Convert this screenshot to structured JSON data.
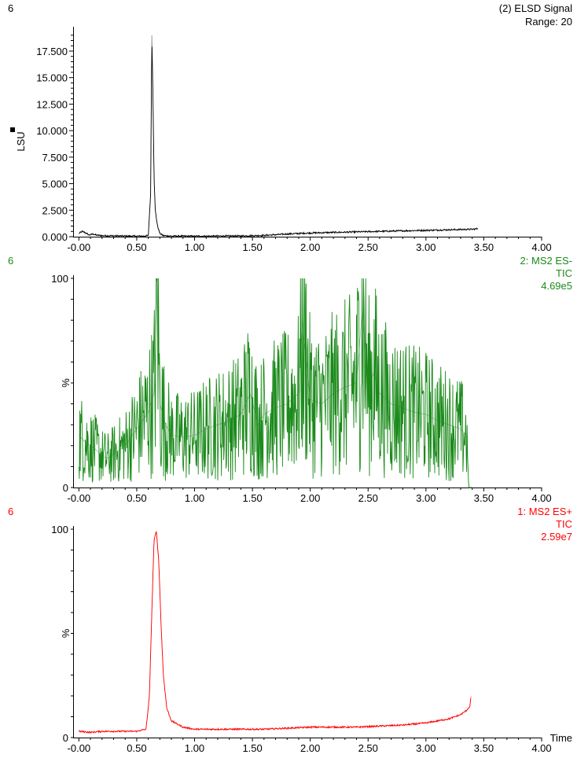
{
  "chart_data": [
    {
      "type": "line",
      "panel_id": "6",
      "title": "(2) ELSD Signal",
      "subtitle": "Range: 20",
      "ylabel": "LSU",
      "xlabel": "",
      "color": "#000000",
      "xlim": [
        -0.05,
        4.0
      ],
      "ylim": [
        0,
        19500
      ],
      "x_ticks": [
        "-0.00",
        "0.50",
        "1.00",
        "1.50",
        "2.00",
        "2.50",
        "3.00",
        "3.50",
        "4.00"
      ],
      "y_ticks": [
        "0.000",
        "2.500",
        "5.000",
        "7.500",
        "10.000",
        "12.500",
        "15.000",
        "17.500"
      ],
      "series": [
        {
          "x": [
            0.0,
            0.03,
            0.06,
            0.09,
            0.12,
            0.15,
            0.2,
            0.3,
            0.4,
            0.5,
            0.56,
            0.6,
            0.62,
            0.63,
            0.64,
            0.65,
            0.66,
            0.68,
            0.7,
            0.73,
            0.8,
            1.0,
            1.2,
            1.4,
            1.6,
            1.8,
            2.0,
            2.2,
            2.4,
            2.6,
            2.8,
            3.0,
            3.2,
            3.4,
            3.45
          ],
          "y": [
            300,
            500,
            350,
            150,
            250,
            150,
            100,
            80,
            60,
            50,
            60,
            100,
            4000,
            19000,
            13500,
            5500,
            2500,
            1000,
            300,
            100,
            60,
            50,
            60,
            70,
            120,
            250,
            350,
            400,
            450,
            500,
            550,
            600,
            650,
            700,
            750
          ]
        }
      ]
    },
    {
      "type": "line",
      "panel_id": "6",
      "title": "2: MS2 ES-",
      "subtitle": "TIC",
      "scale": "4.69e5",
      "ylabel": "%",
      "xlabel": "",
      "color": "#1a8a1a",
      "xlim": [
        -0.05,
        4.0
      ],
      "ylim": [
        0,
        100
      ],
      "x_ticks": [
        "-0.00",
        "0.50",
        "1.00",
        "1.50",
        "2.00",
        "2.50",
        "3.00",
        "3.50",
        "4.00"
      ],
      "y_ticks": [
        "0",
        "100"
      ],
      "noise": "high",
      "series": [
        {
          "x": [
            0.0,
            0.05,
            0.1,
            0.15,
            0.2,
            0.25,
            0.3,
            0.35,
            0.4,
            0.45,
            0.5,
            0.55,
            0.6,
            0.65,
            0.68,
            0.7,
            0.75,
            0.8,
            0.9,
            1.0,
            1.1,
            1.2,
            1.3,
            1.4,
            1.48,
            1.55,
            1.6,
            1.7,
            1.8,
            1.9,
            1.93,
            2.0,
            2.1,
            2.2,
            2.3,
            2.4,
            2.45,
            2.5,
            2.55,
            2.6,
            2.7,
            2.8,
            2.9,
            3.0,
            3.1,
            3.2,
            3.3,
            3.35,
            3.36,
            3.37,
            3.4
          ],
          "y": [
            25,
            22,
            20,
            18,
            15,
            14,
            16,
            18,
            20,
            24,
            28,
            32,
            36,
            45,
            100,
            40,
            30,
            25,
            24,
            25,
            28,
            30,
            32,
            35,
            45,
            30,
            35,
            38,
            40,
            45,
            80,
            42,
            40,
            45,
            48,
            50,
            85,
            48,
            55,
            45,
            40,
            38,
            36,
            35,
            32,
            30,
            28,
            25,
            15,
            0,
            0
          ]
        }
      ]
    },
    {
      "type": "line",
      "panel_id": "6",
      "title": "1: MS2 ES+",
      "subtitle": "TIC",
      "scale": "2.59e7",
      "ylabel": "%",
      "xlabel": "Time",
      "color": "#ff0000",
      "xlim": [
        -0.05,
        4.0
      ],
      "ylim": [
        0,
        100
      ],
      "x_ticks": [
        "-0.00",
        "0.50",
        "1.00",
        "1.50",
        "2.00",
        "2.50",
        "3.00",
        "3.50",
        "4.00"
      ],
      "y_ticks": [
        "0",
        "100"
      ],
      "series": [
        {
          "x": [
            0.0,
            0.1,
            0.2,
            0.3,
            0.4,
            0.5,
            0.58,
            0.61,
            0.63,
            0.65,
            0.67,
            0.69,
            0.71,
            0.73,
            0.76,
            0.8,
            0.9,
            1.0,
            1.2,
            1.4,
            1.6,
            1.8,
            2.0,
            2.2,
            2.4,
            2.6,
            2.8,
            3.0,
            3.1,
            3.2,
            3.3,
            3.35,
            3.38,
            3.39
          ],
          "y": [
            3,
            2.5,
            3,
            3,
            3,
            3,
            4,
            20,
            60,
            95,
            99,
            85,
            55,
            30,
            14,
            8,
            5,
            4,
            4,
            4,
            4,
            4.5,
            5,
            5,
            5,
            5.5,
            6,
            7,
            8,
            9,
            11,
            13,
            15,
            20
          ]
        }
      ]
    }
  ]
}
